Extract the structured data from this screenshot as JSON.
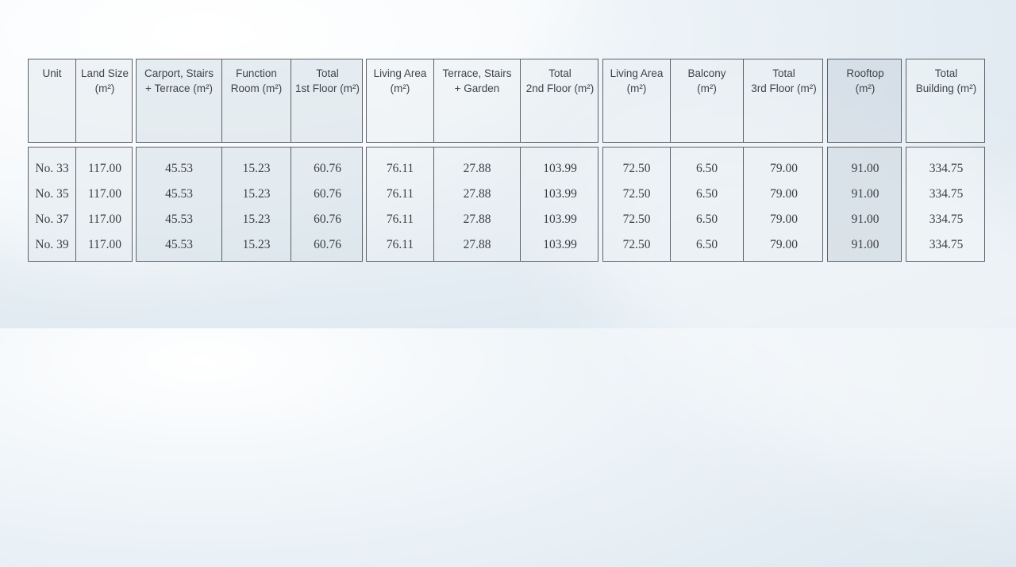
{
  "columns": [
    {
      "key": "unit",
      "label": "Unit"
    },
    {
      "key": "land",
      "label": "Land Size\n(m²)"
    },
    {
      "key": "carport",
      "label": "Carport, Stairs\n+ Terrace (m²)"
    },
    {
      "key": "function",
      "label": "Function\nRoom (m²)"
    },
    {
      "key": "total1",
      "label": "Total\n1st Floor (m²)"
    },
    {
      "key": "living2",
      "label": "Living Area\n(m²)"
    },
    {
      "key": "terrace",
      "label": "Terrace, Stairs\n+ Garden"
    },
    {
      "key": "total2",
      "label": "Total\n2nd Floor (m²)"
    },
    {
      "key": "living3",
      "label": "Living Area\n(m²)"
    },
    {
      "key": "balcony",
      "label": "Balcony\n(m²)"
    },
    {
      "key": "total3",
      "label": "Total\n3rd Floor (m²)"
    },
    {
      "key": "rooftop",
      "label": "Rooftop\n(m²)"
    },
    {
      "key": "building",
      "label": "Total\nBuilding (m²)"
    }
  ],
  "rows": [
    {
      "unit": "No. 33",
      "land": "117.00",
      "carport": "45.53",
      "function": "15.23",
      "total1": "60.76",
      "living2": "76.11",
      "terrace": "27.88",
      "total2": "103.99",
      "living3": "72.50",
      "balcony": "6.50",
      "total3": "79.00",
      "rooftop": "91.00",
      "building": "334.75"
    },
    {
      "unit": "No. 35",
      "land": "117.00",
      "carport": "45.53",
      "function": "15.23",
      "total1": "60.76",
      "living2": "76.11",
      "terrace": "27.88",
      "total2": "103.99",
      "living3": "72.50",
      "balcony": "6.50",
      "total3": "79.00",
      "rooftop": "91.00",
      "building": "334.75"
    },
    {
      "unit": "No. 37",
      "land": "117.00",
      "carport": "45.53",
      "function": "15.23",
      "total1": "60.76",
      "living2": "76.11",
      "terrace": "27.88",
      "total2": "103.99",
      "living3": "72.50",
      "balcony": "6.50",
      "total3": "79.00",
      "rooftop": "91.00",
      "building": "334.75"
    },
    {
      "unit": "No. 39",
      "land": "117.00",
      "carport": "45.53",
      "function": "15.23",
      "total1": "60.76",
      "living2": "76.11",
      "terrace": "27.88",
      "total2": "103.99",
      "living3": "72.50",
      "balcony": "6.50",
      "total3": "79.00",
      "rooftop": "91.00",
      "building": "334.75"
    }
  ]
}
